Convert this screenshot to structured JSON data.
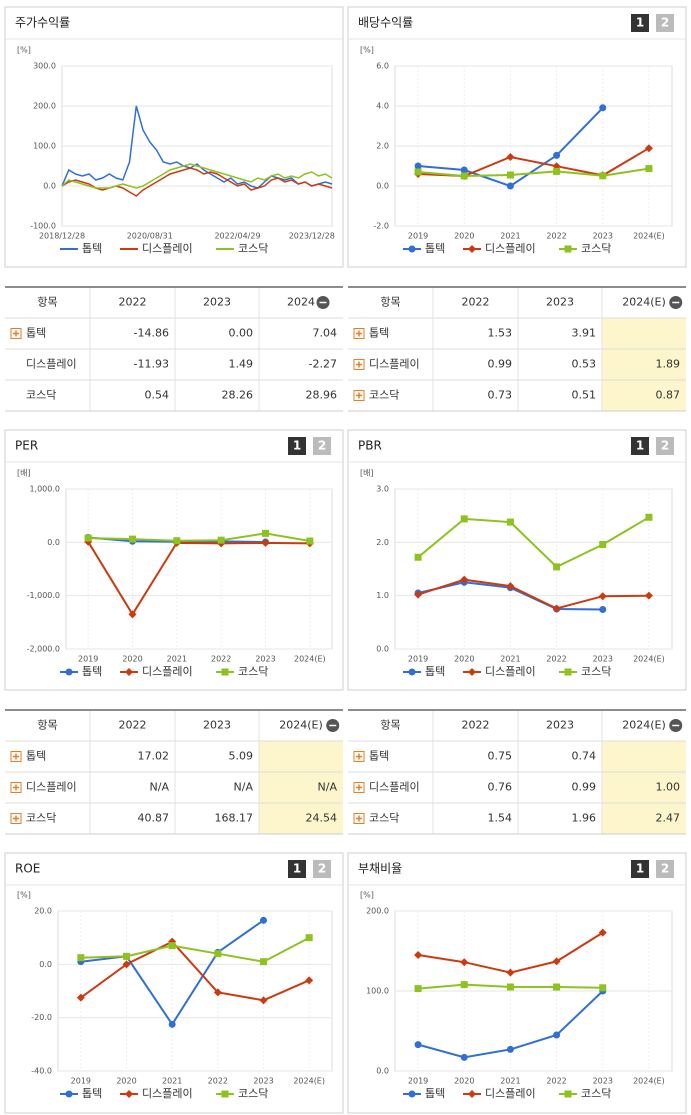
{
  "panel_buttons": [
    "1",
    "2"
  ],
  "chart_data": [
    {
      "type": "line",
      "title": "주가수익률",
      "y_label": "[%]",
      "categories": [
        "2018/12/28",
        null,
        null,
        null,
        null,
        null,
        null,
        null,
        null,
        null,
        null,
        null,
        null,
        "2020/08/31",
        null,
        null,
        null,
        null,
        null,
        null,
        null,
        null,
        null,
        null,
        null,
        null,
        "2022/04/29",
        null,
        null,
        null,
        null,
        null,
        null,
        null,
        null,
        null,
        null,
        "2023/12/28",
        null,
        null,
        null
      ],
      "series": [
        {
          "name": "톱텍",
          "color": "#2f6fd6",
          "values": [
            0,
            40,
            30,
            25,
            30,
            15,
            20,
            30,
            20,
            15,
            60,
            200,
            140,
            110,
            90,
            60,
            55,
            60,
            50,
            45,
            55,
            40,
            30,
            20,
            10,
            20,
            5,
            10,
            0,
            -5,
            10,
            25,
            20,
            15,
            20,
            5,
            10,
            0,
            5,
            10,
            5
          ]
        },
        {
          "name": "디스플레이",
          "color": "#cc3a10",
          "values": [
            0,
            10,
            15,
            10,
            5,
            -5,
            -10,
            -5,
            0,
            -5,
            -15,
            -25,
            -10,
            0,
            10,
            20,
            30,
            35,
            40,
            45,
            40,
            30,
            35,
            30,
            20,
            10,
            0,
            5,
            -10,
            -5,
            0,
            15,
            20,
            10,
            15,
            5,
            10,
            0,
            5,
            0,
            -5
          ]
        },
        {
          "name": "코스닥",
          "color": "#8dc21f",
          "values": [
            0,
            15,
            10,
            5,
            0,
            -5,
            -5,
            -5,
            0,
            5,
            0,
            -5,
            0,
            10,
            20,
            30,
            40,
            45,
            50,
            55,
            50,
            45,
            40,
            35,
            30,
            25,
            20,
            15,
            10,
            20,
            15,
            25,
            30,
            20,
            25,
            20,
            30,
            35,
            25,
            30,
            20
          ]
        }
      ],
      "ylim": [
        -100,
        300
      ],
      "yticks": [
        {
          "value": -100,
          "label": "-100.0"
        },
        {
          "value": 0,
          "label": "0.0"
        },
        {
          "value": 100,
          "label": "100.0"
        },
        {
          "value": 200,
          "label": "200.0"
        },
        {
          "value": 300,
          "label": "300.0"
        }
      ],
      "grid": true
    },
    {
      "type": "line",
      "title": "배당수익률",
      "y_label": "[%]",
      "categories": [
        "2019",
        "2020",
        "2021",
        "2022",
        "2023",
        "2024(E)"
      ],
      "series": [
        {
          "name": "톱텍",
          "color": "#2f6fd6",
          "marker": "circle",
          "values": [
            1.0,
            0.8,
            0.0,
            1.53,
            3.91,
            null
          ]
        },
        {
          "name": "디스플레이",
          "color": "#cc3a10",
          "marker": "diamond",
          "values": [
            0.6,
            0.5,
            1.45,
            0.99,
            0.53,
            1.89
          ]
        },
        {
          "name": "코스닥",
          "color": "#8dc21f",
          "marker": "square",
          "values": [
            0.7,
            0.5,
            0.55,
            0.73,
            0.51,
            0.87
          ]
        }
      ],
      "ylim": [
        -2,
        6
      ],
      "yticks": [
        {
          "value": -2,
          "label": "-2.0"
        },
        {
          "value": 0,
          "label": "0.0"
        },
        {
          "value": 2,
          "label": "2.0"
        },
        {
          "value": 4,
          "label": "4.0"
        },
        {
          "value": 6,
          "label": "6.0"
        }
      ],
      "grid": true
    },
    {
      "type": "line",
      "title": "PER",
      "y_label": "[배]",
      "categories": [
        "2019",
        "2020",
        "2021",
        "2022",
        "2023",
        "2024(E)"
      ],
      "series": [
        {
          "name": "톱텍",
          "color": "#2f6fd6",
          "marker": "circle",
          "values": [
            90,
            20,
            10,
            17.02,
            5.09,
            null
          ]
        },
        {
          "name": "디스플레이",
          "color": "#cc3a10",
          "marker": "diamond",
          "values": [
            10,
            -1350,
            -10,
            -20,
            -10,
            -20
          ]
        },
        {
          "name": "코스닥",
          "color": "#8dc21f",
          "marker": "square",
          "values": [
            80,
            60,
            30,
            40.87,
            168.17,
            24.54
          ]
        }
      ],
      "ylim": [
        -2000,
        1000
      ],
      "yticks": [
        {
          "value": -2000,
          "label": "-2,000.0"
        },
        {
          "value": -1000,
          "label": "-1,000.0"
        },
        {
          "value": 0,
          "label": "0.0"
        },
        {
          "value": 1000,
          "label": "1,000.0"
        }
      ],
      "grid": true
    },
    {
      "type": "line",
      "title": "PBR",
      "y_label": "[배]",
      "categories": [
        "2019",
        "2020",
        "2021",
        "2022",
        "2023",
        "2024(E)"
      ],
      "series": [
        {
          "name": "톱텍",
          "color": "#2f6fd6",
          "marker": "circle",
          "values": [
            1.05,
            1.25,
            1.15,
            0.75,
            0.74,
            null
          ]
        },
        {
          "name": "디스플레이",
          "color": "#cc3a10",
          "marker": "diamond",
          "values": [
            1.02,
            1.3,
            1.18,
            0.76,
            0.99,
            1.0
          ]
        },
        {
          "name": "코스닥",
          "color": "#8dc21f",
          "marker": "square",
          "values": [
            1.72,
            2.44,
            2.38,
            1.54,
            1.96,
            2.47
          ]
        }
      ],
      "ylim": [
        0,
        3
      ],
      "yticks": [
        {
          "value": 0,
          "label": "0.0"
        },
        {
          "value": 1,
          "label": "1.0"
        },
        {
          "value": 2,
          "label": "2.0"
        },
        {
          "value": 3,
          "label": "3.0"
        }
      ],
      "grid": true
    },
    {
      "type": "line",
      "title": "ROE",
      "y_label": "[%]",
      "categories": [
        "2019",
        "2020",
        "2021",
        "2022",
        "2023",
        "2024(E)"
      ],
      "series": [
        {
          "name": "톱텍",
          "color": "#2f6fd6",
          "marker": "circle",
          "values": [
            1,
            3,
            -22.5,
            4.5,
            16.5,
            null
          ]
        },
        {
          "name": "디스플레이",
          "color": "#cc3a10",
          "marker": "diamond",
          "values": [
            -12.5,
            0,
            8.5,
            -10.5,
            -13.5,
            -6
          ]
        },
        {
          "name": "코스닥",
          "color": "#8dc21f",
          "marker": "square",
          "values": [
            2.5,
            3,
            7,
            4,
            1,
            10
          ]
        }
      ],
      "ylim": [
        -40,
        20
      ],
      "yticks": [
        {
          "value": -40,
          "label": "-40.0"
        },
        {
          "value": -20,
          "label": "-20.0"
        },
        {
          "value": 0,
          "label": "0.0"
        },
        {
          "value": 20,
          "label": "20.0"
        }
      ],
      "grid": true
    },
    {
      "type": "line",
      "title": "부채비율",
      "y_label": "[%]",
      "categories": [
        "2019",
        "2020",
        "2021",
        "2022",
        "2023",
        "2024(E)"
      ],
      "series": [
        {
          "name": "톱텍",
          "color": "#2f6fd6",
          "marker": "circle",
          "values": [
            33,
            17,
            27,
            45,
            100,
            null
          ]
        },
        {
          "name": "디스플레이",
          "color": "#cc3a10",
          "marker": "diamond",
          "values": [
            145,
            136,
            123,
            137,
            173,
            null
          ]
        },
        {
          "name": "코스닥",
          "color": "#8dc21f",
          "marker": "square",
          "values": [
            103,
            108,
            105,
            105,
            104,
            null
          ]
        }
      ],
      "ylim": [
        0,
        200
      ],
      "yticks": [
        {
          "value": 0,
          "label": "0.0"
        },
        {
          "value": 100,
          "label": "100.0"
        },
        {
          "value": 200,
          "label": "200.0"
        }
      ],
      "grid": true
    }
  ],
  "tables": [
    {
      "columns": [
        "항목",
        "2022",
        "2023",
        "2024"
      ],
      "rows": [
        [
          "톱텍",
          "-14.86",
          "0.00",
          "7.04"
        ],
        [
          "디스플레이",
          "-11.93",
          "1.49",
          "-2.27"
        ],
        [
          "코스닥",
          "0.54",
          "28.26",
          "28.96"
        ]
      ]
    },
    {
      "columns": [
        "항목",
        "2022",
        "2023",
        "2024(E)"
      ],
      "rows": [
        [
          "톱텍",
          "1.53",
          "3.91",
          null
        ],
        [
          "디스플레이",
          "0.99",
          "0.53",
          "1.89"
        ],
        [
          "코스닥",
          "0.73",
          "0.51",
          "0.87"
        ]
      ]
    },
    {
      "columns": [
        "항목",
        "2022",
        "2023",
        "2024(E)"
      ],
      "rows": [
        [
          "톱텍",
          "17.02",
          "5.09",
          null
        ],
        [
          "디스플레이",
          "N/A",
          "N/A",
          "N/A"
        ],
        [
          "코스닥",
          "40.87",
          "168.17",
          "24.54"
        ]
      ]
    },
    {
      "columns": [
        "항목",
        "2022",
        "2023",
        "2024(E)"
      ],
      "rows": [
        [
          "톱텍",
          "0.75",
          "0.74",
          null
        ],
        [
          "디스플레이",
          "0.76",
          "0.99",
          "1.00"
        ],
        [
          "코스닥",
          "1.54",
          "1.96",
          "2.47"
        ]
      ]
    }
  ]
}
